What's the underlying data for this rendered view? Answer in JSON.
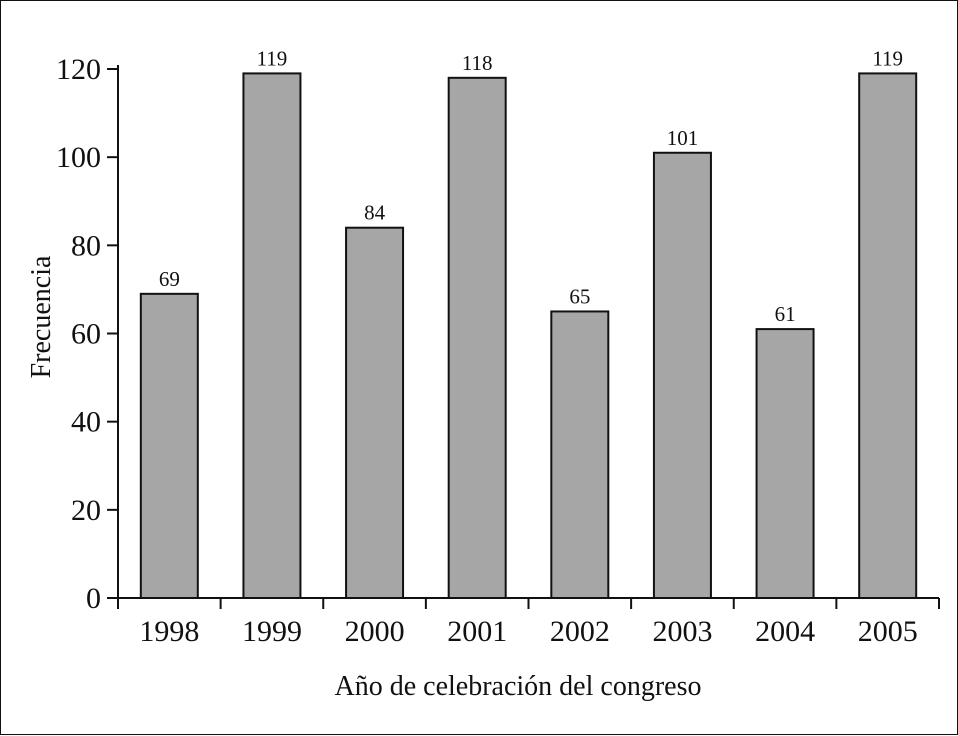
{
  "chart_data": {
    "type": "bar",
    "title": "",
    "xlabel": "Año de celebración del congreso",
    "ylabel": "Frecuencia",
    "categories": [
      "1998",
      "1999",
      "2000",
      "2001",
      "2002",
      "2003",
      "2004",
      "2005"
    ],
    "values": [
      69,
      119,
      84,
      118,
      65,
      101,
      61,
      119
    ],
    "data_labels": [
      "69",
      "119",
      "84",
      "118",
      "65",
      "101",
      "61",
      "119"
    ],
    "ylim": [
      0,
      120
    ],
    "yticks": [
      0,
      20,
      40,
      60,
      80,
      100,
      120
    ],
    "grid": false,
    "legend": "none",
    "bar_color": "#a6a6a6",
    "bar_edge_color": "#111111"
  }
}
